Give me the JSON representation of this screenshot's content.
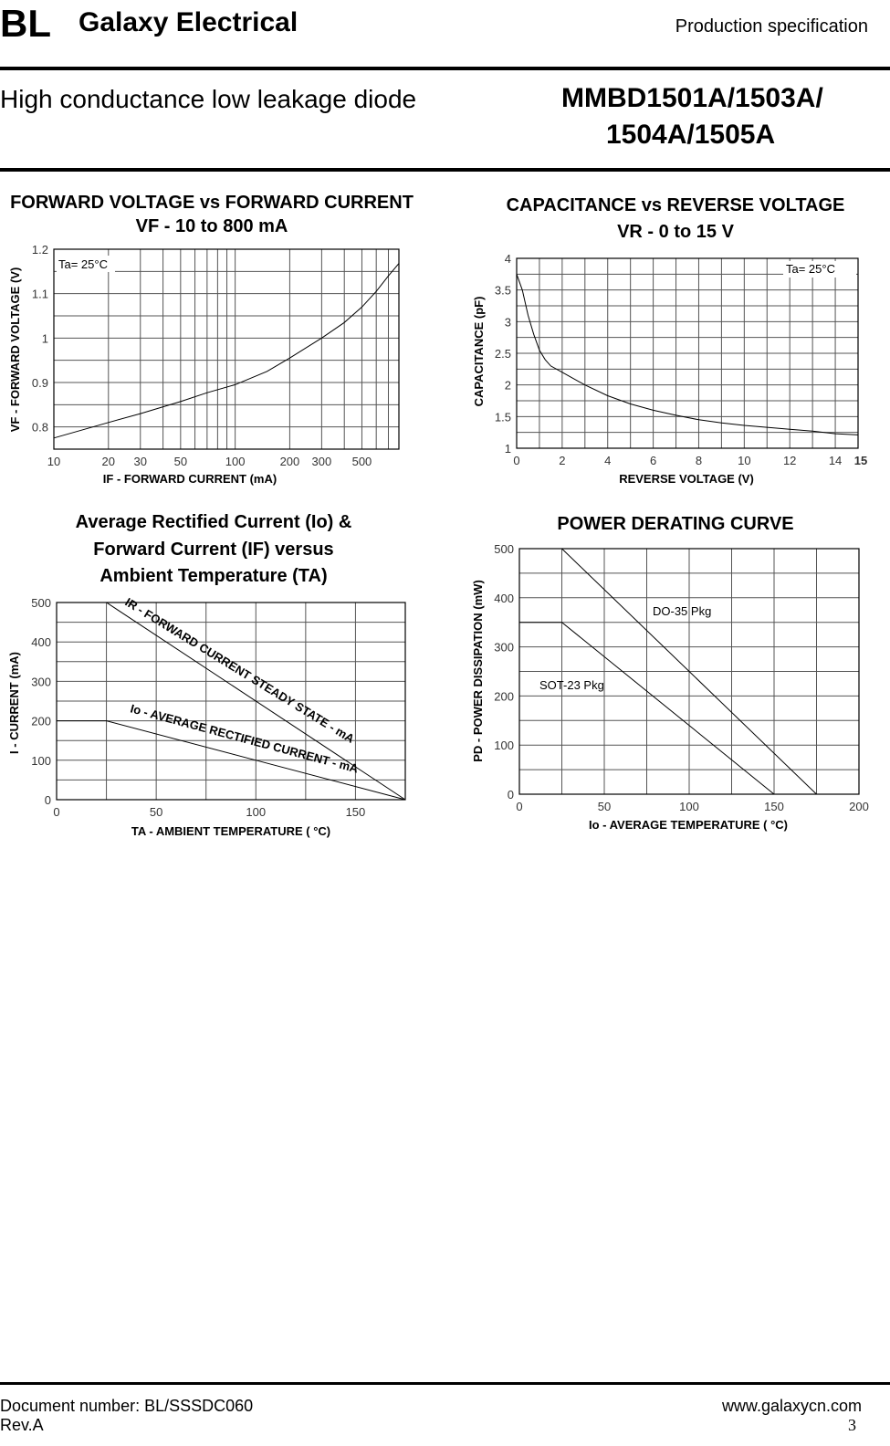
{
  "header": {
    "logo": "BL",
    "company": "Galaxy Electrical",
    "doc_type": "Production specification",
    "product_desc": "High conductance low leakage diode",
    "part_line1": "MMBD1501A/1503A/",
    "part_line2": "1504A/1505A"
  },
  "footer": {
    "doc_number": "Document number: BL/SSSDC060",
    "revision": "Rev.A",
    "website": "www.galaxycn.com",
    "page": "3"
  },
  "chart_data": [
    {
      "type": "line",
      "title": [
        "FORWARD VOLTAGE vs FORWARD CURRENT",
        "VF - 10 to 800 mA"
      ],
      "xlabel": "IF  - FORWARD CURRENT  (mA)",
      "ylabel": "VF  - FORWARD VOLTAGE (V)",
      "xscale": "log",
      "xlim": [
        10,
        800
      ],
      "ylim": [
        0.75,
        1.2
      ],
      "x_ticks": [
        "10",
        "20",
        "30",
        "50",
        "100",
        "200",
        "300",
        "500"
      ],
      "y_ticks": [
        "0.8",
        "0.9",
        "1",
        "1.1",
        "1.2"
      ],
      "grid": true,
      "annotation": "Ta= 25°C",
      "series": [
        {
          "x": [
            10,
            20,
            30,
            50,
            70,
            100,
            150,
            200,
            300,
            400,
            500,
            600,
            700,
            800
          ],
          "y": [
            0.775,
            0.81,
            0.83,
            0.857,
            0.877,
            0.895,
            0.925,
            0.955,
            1.0,
            1.035,
            1.07,
            1.105,
            1.14,
            1.168
          ]
        }
      ]
    },
    {
      "type": "line",
      "title": [
        "CAPACITANCE vs REVERSE VOLTAGE",
        "VR - 0 to 15 V"
      ],
      "xlabel": "REVERSE VOLTAGE (V)",
      "ylabel": "CAPACITANCE (pF)",
      "xlim": [
        0,
        15
      ],
      "ylim": [
        1,
        4
      ],
      "x_ticks": [
        "0",
        "2",
        "4",
        "6",
        "8",
        "10",
        "12",
        "14",
        "15"
      ],
      "y_ticks": [
        "1",
        "1.5",
        "2",
        "2.5",
        "3",
        "3.5",
        "4"
      ],
      "grid": true,
      "annotation": "Ta= 25°C",
      "series": [
        {
          "x": [
            0,
            0.25,
            0.5,
            0.75,
            1,
            1.25,
            1.5,
            2,
            3,
            4,
            5,
            6,
            7,
            8,
            9,
            10,
            11,
            12,
            13,
            14,
            15
          ],
          "y": [
            3.75,
            3.5,
            3.1,
            2.8,
            2.55,
            2.4,
            2.3,
            2.2,
            2.0,
            1.83,
            1.7,
            1.6,
            1.52,
            1.45,
            1.4,
            1.36,
            1.33,
            1.3,
            1.27,
            1.23,
            1.21
          ]
        }
      ]
    },
    {
      "type": "line",
      "title": [
        "Average Rectified Current (Io) &",
        "Forward Current (IF) versus",
        "Ambient Temperature (TA)"
      ],
      "xlabel": "TA - AMBIENT TEMPERATURE  ( °C)",
      "ylabel": "I - CURRENT (mA)",
      "xlim": [
        0,
        175
      ],
      "ylim": [
        0,
        500
      ],
      "x_ticks": [
        "0",
        "50",
        "100",
        "150"
      ],
      "y_ticks": [
        "0",
        "100",
        "200",
        "300",
        "400",
        "500"
      ],
      "grid": true,
      "series": [
        {
          "name": "IR  - FORWARD CURRENT STEADY STATE - mA",
          "x": [
            0,
            25,
            175
          ],
          "y": [
            500,
            500,
            0
          ]
        },
        {
          "name": "Io - AVERAGE RECTIFIED CURRENT - mA",
          "x": [
            0,
            25,
            100,
            175
          ],
          "y": [
            200,
            200,
            100,
            0
          ]
        }
      ]
    },
    {
      "type": "line",
      "title": [
        "POWER DERATING CURVE"
      ],
      "xlabel": "Io - AVERAGE TEMPERATURE  ( °C)",
      "ylabel": "PD  - POWER DISSIPATION (mW)",
      "xlim": [
        0,
        200
      ],
      "ylim": [
        0,
        500
      ],
      "x_ticks": [
        "0",
        "50",
        "100",
        "150",
        "200"
      ],
      "y_ticks": [
        "0",
        "100",
        "200",
        "300",
        "400",
        "500"
      ],
      "grid": true,
      "series": [
        {
          "name": "DO-35 Pkg",
          "x": [
            0,
            25,
            175
          ],
          "y": [
            500,
            500,
            0
          ]
        },
        {
          "name": "SOT-23 Pkg",
          "x": [
            0,
            25,
            150
          ],
          "y": [
            350,
            350,
            0
          ]
        }
      ]
    }
  ]
}
